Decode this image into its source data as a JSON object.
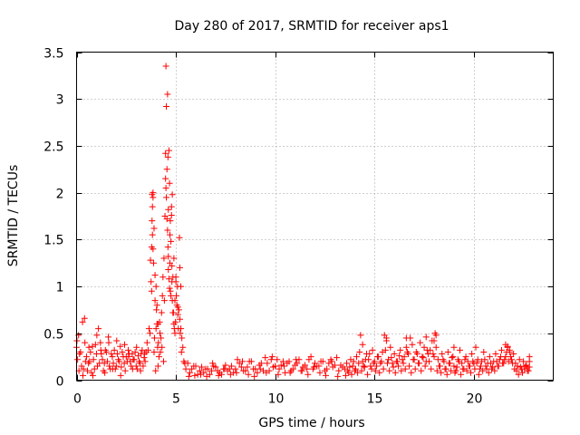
{
  "chart_data": {
    "type": "scatter",
    "title": "Day 280 of 2017, SRMTID for receiver aps1",
    "xlabel": "GPS time / hours",
    "ylabel": "SRMTID / TECUs",
    "xlim": [
      0,
      24
    ],
    "ylim": [
      0,
      3.5
    ],
    "grid": true,
    "marker": "+",
    "color": "#ff0000",
    "x_ticks": [
      0,
      5,
      10,
      15,
      20
    ],
    "x_tick_labels": [
      "0",
      "5",
      "10",
      "15",
      "20"
    ],
    "y_ticks": [
      0,
      0.5,
      1,
      1.5,
      2,
      2.5,
      3,
      3.5
    ],
    "y_tick_labels": [
      "0",
      "0.5",
      "1",
      "1.5",
      "2",
      "2.5",
      "3",
      "3.5"
    ],
    "series": [
      {
        "name": "SRMTID",
        "x": [
          0.0,
          0.1,
          0.15,
          0.25,
          0.3,
          0.4,
          0.45,
          0.55,
          0.6,
          0.7,
          0.8,
          0.9,
          1.0,
          1.1,
          1.2,
          1.3,
          1.4,
          1.5,
          1.6,
          1.7,
          1.8,
          1.9,
          2.0,
          2.1,
          2.2,
          2.3,
          2.4,
          2.5,
          2.6,
          2.7,
          2.8,
          2.9,
          3.0,
          3.1,
          3.2,
          3.3,
          3.4,
          3.5,
          0.05,
          0.2,
          0.35,
          0.5,
          0.65,
          0.75,
          0.85,
          0.95,
          1.05,
          1.15,
          1.25,
          1.35,
          1.45,
          1.55,
          1.65,
          1.75,
          1.85,
          1.95,
          2.05,
          2.15,
          2.25,
          2.35,
          2.45,
          2.55,
          2.65,
          2.75,
          2.85,
          2.95,
          3.05,
          3.15,
          3.25,
          3.35,
          3.45,
          0.02,
          0.12,
          0.32,
          0.42,
          0.62,
          0.82,
          1.02,
          1.22,
          1.42,
          1.62,
          1.82,
          2.02,
          2.22,
          2.42,
          2.62,
          2.82,
          3.02,
          3.22,
          3.42,
          3.55,
          3.6,
          3.65,
          3.7,
          3.72,
          3.75,
          3.78,
          3.8,
          3.82,
          3.85,
          3.88,
          3.9,
          3.92,
          3.95,
          3.98,
          4.0,
          4.02,
          4.05,
          4.08,
          4.1,
          4.12,
          4.15,
          4.18,
          4.2,
          4.22,
          4.25,
          4.28,
          4.3,
          4.32,
          4.35,
          4.38,
          4.4,
          4.42,
          4.45,
          4.48,
          4.5,
          4.52,
          4.55,
          4.58,
          4.6,
          4.62,
          4.65,
          4.68,
          4.7,
          4.72,
          4.75,
          4.78,
          4.8,
          4.82,
          4.85,
          4.88,
          4.9,
          4.92,
          4.95,
          4.98,
          5.0,
          5.02,
          5.05,
          5.08,
          5.1,
          5.12,
          5.15,
          5.18,
          5.2,
          5.22,
          5.25,
          5.28,
          5.3,
          5.35,
          5.4,
          5.45,
          5.5,
          3.78,
          3.8,
          3.82,
          3.85,
          3.85,
          3.9,
          3.95,
          4.0,
          4.05,
          4.1,
          4.48,
          4.5,
          4.52,
          4.55,
          4.58,
          4.6,
          4.62,
          4.62,
          4.65,
          4.68,
          4.7,
          4.72,
          4.75,
          4.78,
          4.8,
          4.82,
          4.85,
          4.9,
          4.95,
          5.0,
          5.1,
          5.2,
          5.25,
          5.6,
          5.8,
          6.0,
          6.2,
          6.4,
          6.6,
          6.8,
          7.0,
          7.2,
          7.4,
          7.6,
          7.8,
          8.0,
          8.2,
          8.4,
          8.6,
          8.8,
          9.0,
          9.2,
          9.4,
          9.6,
          9.8,
          10.0,
          10.2,
          10.4,
          10.6,
          10.8,
          11.0,
          11.2,
          11.4,
          11.6,
          11.8,
          12.0,
          12.2,
          12.4,
          12.6,
          12.8,
          13.0,
          13.2,
          13.4,
          5.7,
          5.9,
          6.1,
          6.3,
          6.5,
          6.7,
          6.9,
          7.1,
          7.3,
          7.5,
          7.7,
          7.9,
          8.1,
          8.3,
          8.5,
          8.7,
          8.9,
          9.1,
          9.3,
          9.5,
          9.7,
          9.9,
          10.1,
          10.3,
          10.5,
          10.7,
          10.9,
          11.1,
          11.3,
          11.5,
          11.7,
          11.9,
          12.1,
          12.3,
          12.5,
          12.7,
          12.9,
          13.1,
          13.3,
          5.65,
          5.95,
          6.25,
          6.55,
          6.85,
          7.15,
          7.45,
          7.75,
          8.05,
          8.35,
          8.65,
          8.95,
          9.25,
          9.55,
          9.85,
          10.15,
          10.45,
          10.75,
          11.05,
          11.35,
          11.65,
          11.95,
          12.25,
          12.55,
          12.85,
          13.15,
          13.5,
          13.6,
          13.7,
          13.8,
          13.9,
          14.0,
          14.1,
          14.2,
          14.3,
          14.4,
          14.5,
          14.6,
          14.7,
          14.8,
          14.9,
          15.0,
          15.1,
          15.2,
          15.3,
          15.4,
          15.5,
          15.6,
          15.7,
          15.8,
          15.9,
          16.0,
          16.1,
          16.2,
          16.3,
          16.4,
          16.5,
          16.6,
          16.7,
          16.8,
          16.9,
          17.0,
          17.1,
          17.2,
          17.3,
          17.4,
          17.5,
          17.6,
          17.7,
          17.8,
          17.9,
          18.0,
          13.55,
          13.65,
          13.75,
          13.85,
          13.95,
          14.05,
          14.15,
          14.25,
          14.35,
          14.45,
          14.55,
          14.65,
          14.75,
          14.85,
          14.95,
          15.05,
          15.15,
          15.25,
          15.35,
          15.45,
          15.55,
          15.65,
          15.75,
          15.85,
          15.95,
          16.05,
          16.15,
          16.25,
          16.35,
          16.45,
          16.55,
          16.65,
          16.75,
          16.85,
          16.95,
          17.05,
          17.15,
          17.25,
          17.35,
          17.45,
          17.55,
          17.65,
          17.75,
          17.85,
          17.95,
          14.4,
          15.6,
          16.6,
          17.6,
          18.05,
          18.1,
          18.2,
          18.3,
          18.4,
          18.5,
          18.6,
          18.7,
          18.8,
          18.9,
          19.0,
          19.1,
          19.2,
          19.3,
          19.4,
          19.5,
          19.6,
          19.7,
          19.8,
          19.9,
          20.0,
          20.1,
          20.2,
          20.3,
          20.4,
          20.5,
          20.6,
          20.7,
          20.8,
          20.9,
          21.0,
          21.1,
          21.2,
          21.3,
          21.4,
          21.5,
          21.6,
          21.7,
          21.8,
          21.9,
          22.0,
          22.1,
          22.2,
          22.3,
          22.4,
          22.5,
          22.6,
          22.7,
          18.15,
          18.25,
          18.35,
          18.45,
          18.55,
          18.65,
          18.75,
          18.85,
          18.95,
          19.05,
          19.15,
          19.25,
          19.35,
          19.45,
          19.55,
          19.65,
          19.75,
          19.85,
          19.95,
          20.05,
          20.15,
          20.25,
          20.35,
          20.45,
          20.55,
          20.65,
          20.75,
          20.85,
          20.95,
          21.05,
          21.15,
          21.25,
          21.35,
          21.45,
          21.55,
          21.65,
          21.75,
          21.85,
          21.95,
          22.05,
          22.15,
          22.25,
          22.35,
          22.45,
          22.55,
          22.65,
          22.75,
          18.0,
          18.1,
          19.0,
          21.6,
          21.7,
          21.8,
          22.8,
          22.8,
          22.8
        ],
        "y": [
          0.35,
          0.48,
          0.28,
          0.15,
          0.62,
          0.66,
          0.2,
          0.1,
          0.18,
          0.3,
          0.36,
          0.12,
          0.28,
          0.55,
          0.4,
          0.22,
          0.18,
          0.3,
          0.46,
          0.12,
          0.25,
          0.32,
          0.15,
          0.22,
          0.36,
          0.3,
          0.18,
          0.25,
          0.32,
          0.2,
          0.28,
          0.22,
          0.15,
          0.26,
          0.18,
          0.32,
          0.24,
          0.3,
          0.22,
          0.3,
          0.12,
          0.25,
          0.2,
          0.08,
          0.22,
          0.38,
          0.15,
          0.18,
          0.28,
          0.1,
          0.32,
          0.2,
          0.15,
          0.28,
          0.18,
          0.12,
          0.28,
          0.2,
          0.14,
          0.25,
          0.1,
          0.2,
          0.28,
          0.15,
          0.22,
          0.3,
          0.12,
          0.2,
          0.28,
          0.15,
          0.2,
          0.42,
          0.1,
          0.05,
          0.4,
          0.35,
          0.05,
          0.48,
          0.32,
          0.08,
          0.4,
          0.12,
          0.42,
          0.05,
          0.38,
          0.25,
          0.12,
          0.35,
          0.1,
          0.28,
          0.4,
          0.32,
          0.55,
          0.5,
          1.28,
          1.05,
          0.95,
          1.98,
          1.55,
          1.4,
          1.25,
          0.3,
          0.45,
          0.85,
          0.1,
          0.55,
          0.75,
          0.6,
          0.35,
          0.15,
          0.4,
          0.25,
          0.62,
          0.5,
          0.3,
          0.45,
          0.72,
          0.35,
          0.9,
          1.1,
          0.2,
          1.3,
          0.85,
          1.75,
          2.15,
          3.35,
          2.92,
          2.25,
          3.05,
          2.38,
          1.82,
          2.45,
          2.1,
          1.55,
          0.95,
          1.48,
          1.85,
          1.22,
          1.98,
          1.1,
          0.72,
          1.3,
          0.55,
          0.85,
          0.62,
          1.05,
          0.9,
          0.8,
          1.0,
          0.7,
          0.55,
          0.75,
          1.52,
          0.65,
          0.5,
          0.55,
          0.3,
          0.45,
          0.35,
          0.2,
          0.18,
          0.12,
          1.42,
          1.7,
          1.85,
          2.0,
          1.95,
          1.62,
          1.12,
          1.0,
          0.8,
          0.6,
          2.42,
          2.05,
          1.95,
          1.72,
          1.6,
          1.42,
          1.32,
          1.18,
          1.08,
          0.98,
          1.25,
          1.7,
          0.9,
          1.76,
          1.05,
          0.85,
          0.72,
          0.6,
          0.5,
          1.1,
          0.78,
          1.2,
          1.0,
          0.18,
          0.12,
          0.15,
          0.1,
          0.08,
          0.12,
          0.1,
          0.14,
          0.08,
          0.12,
          0.1,
          0.15,
          0.12,
          0.18,
          0.1,
          0.14,
          0.2,
          0.12,
          0.16,
          0.1,
          0.18,
          0.22,
          0.15,
          0.12,
          0.2,
          0.18,
          0.1,
          0.16,
          0.22,
          0.14,
          0.12,
          0.25,
          0.18,
          0.15,
          0.2,
          0.12,
          0.22,
          0.16,
          0.1,
          0.14,
          0.08,
          0.15,
          0.06,
          0.14,
          0.12,
          0.06,
          0.15,
          0.1,
          0.06,
          0.16,
          0.12,
          0.08,
          0.22,
          0.14,
          0.1,
          0.2,
          0.12,
          0.08,
          0.18,
          0.24,
          0.1,
          0.14,
          0.22,
          0.16,
          0.08,
          0.2,
          0.12,
          0.18,
          0.1,
          0.16,
          0.22,
          0.12,
          0.15,
          0.2,
          0.1,
          0.18,
          0.14,
          0.24,
          0.16,
          0.04,
          0.05,
          0.06,
          0.04,
          0.18,
          0.05,
          0.12,
          0.06,
          0.08,
          0.2,
          0.06,
          0.04,
          0.12,
          0.08,
          0.25,
          0.06,
          0.15,
          0.08,
          0.22,
          0.1,
          0.06,
          0.14,
          0.08,
          0.05,
          0.2,
          0.04,
          0.12,
          0.18,
          0.08,
          0.22,
          0.15,
          0.1,
          0.25,
          0.18,
          0.48,
          0.2,
          0.14,
          0.28,
          0.22,
          0.15,
          0.32,
          0.2,
          0.15,
          0.25,
          0.18,
          0.3,
          0.48,
          0.42,
          0.22,
          0.35,
          0.18,
          0.28,
          0.2,
          0.15,
          0.32,
          0.22,
          0.25,
          0.35,
          0.28,
          0.45,
          0.38,
          0.22,
          0.3,
          0.18,
          0.4,
          0.25,
          0.35,
          0.2,
          0.28,
          0.32,
          0.42,
          0.25,
          0.05,
          0.1,
          0.14,
          0.06,
          0.2,
          0.12,
          0.08,
          0.3,
          0.1,
          0.15,
          0.22,
          0.06,
          0.28,
          0.12,
          0.18,
          0.1,
          0.25,
          0.08,
          0.2,
          0.12,
          0.32,
          0.18,
          0.1,
          0.24,
          0.14,
          0.08,
          0.2,
          0.26,
          0.1,
          0.18,
          0.12,
          0.3,
          0.15,
          0.08,
          0.22,
          0.12,
          0.28,
          0.18,
          0.1,
          0.24,
          0.15,
          0.32,
          0.2,
          0.12,
          0.28,
          0.38,
          0.45,
          0.45,
          0.46,
          0.5,
          0.35,
          0.22,
          0.15,
          0.28,
          0.2,
          0.12,
          0.3,
          0.18,
          0.24,
          0.15,
          0.1,
          0.22,
          0.32,
          0.18,
          0.12,
          0.25,
          0.2,
          0.15,
          0.28,
          0.18,
          0.35,
          0.22,
          0.12,
          0.2,
          0.3,
          0.15,
          0.18,
          0.25,
          0.12,
          0.2,
          0.28,
          0.15,
          0.22,
          0.32,
          0.18,
          0.25,
          0.36,
          0.3,
          0.22,
          0.28,
          0.18,
          0.15,
          0.22,
          0.12,
          0.2,
          0.15,
          0.1,
          0.1,
          0.15,
          0.08,
          0.22,
          0.12,
          0.06,
          0.18,
          0.1,
          0.25,
          0.08,
          0.14,
          0.2,
          0.06,
          0.12,
          0.22,
          0.1,
          0.15,
          0.08,
          0.2,
          0.12,
          0.18,
          0.06,
          0.15,
          0.1,
          0.22,
          0.12,
          0.08,
          0.18,
          0.14,
          0.1,
          0.2,
          0.15,
          0.25,
          0.18,
          0.22,
          0.3,
          0.2,
          0.25,
          0.18,
          0.12,
          0.1,
          0.06,
          0.14,
          0.08,
          0.12,
          0.16,
          0.1,
          0.42,
          0.48,
          0.35,
          0.38,
          0.35,
          0.32,
          0.25,
          0.2,
          0.14
        ]
      }
    ]
  }
}
